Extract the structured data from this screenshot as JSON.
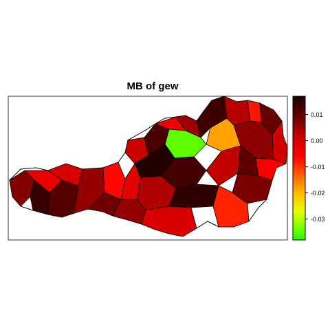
{
  "title": "MB of gew",
  "legend": {
    "ticks": [
      "0.01",
      "0.00",
      "-0.01",
      "-0.02",
      "-0.03"
    ],
    "tick_values": [
      0.01,
      0.0,
      -0.01,
      -0.02,
      -0.03
    ],
    "range": [
      -0.038,
      0.017
    ],
    "colors": [
      "#26ff00",
      "#e6ff00",
      "#ffc000",
      "#ff6000",
      "#ff0000",
      "#c80000",
      "#8a0000",
      "#4a0000",
      "#1a0000"
    ]
  },
  "regions": [
    {
      "value": 0.004
    },
    {
      "value": -0.008
    },
    {
      "value": 0.013
    },
    {
      "value": -0.006
    },
    {
      "value": 0.009
    },
    {
      "value": 0.002
    },
    {
      "value": -0.011
    },
    {
      "value": 0.006
    },
    {
      "value": -0.004
    },
    {
      "value": 0.01
    },
    {
      "value": -0.009
    },
    {
      "value": 0.001
    },
    {
      "value": 0.012
    },
    {
      "value": -0.002
    },
    {
      "value": -0.012
    },
    {
      "value": 0.007
    },
    {
      "value": -0.005
    },
    {
      "value": 0.003
    },
    {
      "value": -0.022
    },
    {
      "value": -0.036
    },
    {
      "value": 0.016
    },
    {
      "value": -0.007
    },
    {
      "value": 0.011
    },
    {
      "value": -0.003
    },
    {
      "value": 0.008
    },
    {
      "value": -0.01
    },
    {
      "value": 0.005
    },
    {
      "value": -0.001
    },
    {
      "value": 0.014
    },
    {
      "value": -0.013
    },
    {
      "value": 0.002
    },
    {
      "value": -0.006
    }
  ]
}
